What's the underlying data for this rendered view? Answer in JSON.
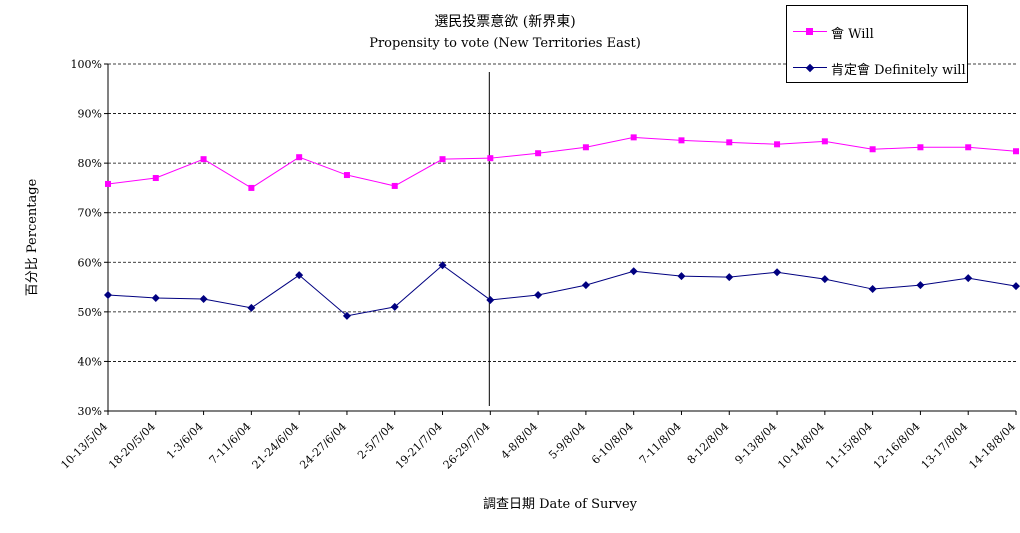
{
  "chart_data": {
    "type": "line",
    "title": "選民投票意欲 (新界東)",
    "subtitle": "Propensity to vote (New Territories East)",
    "xlabel": "調查日期 Date of Survey",
    "ylabel": "百分比 Percentage",
    "ylim": [
      30,
      100
    ],
    "yticks": [
      "30%",
      "40%",
      "50%",
      "60%",
      "70%",
      "80%",
      "90%",
      "100%"
    ],
    "grid": true,
    "legend_position": "top-right",
    "categories": [
      "10-13/5/04",
      "18-20/5/04",
      "1-3/6/04",
      "7-11/6/04",
      "21-24/6/04",
      "24-27/6/04",
      "2-5/7/04",
      "19-21/7/04",
      "26-29/7/04",
      "4-8/8/04",
      "5-9/8/04",
      "6-10/8/04",
      "7-11/8/04",
      "8-12/8/04",
      "9-13/8/04",
      "10-14/8/04",
      "11-15/8/04",
      "12-16/8/04",
      "13-17/8/04",
      "14-18/8/04"
    ],
    "vertical_marker_after_category": "26-29/7/04",
    "series": [
      {
        "name": "會 Will",
        "color": "#ff00ff",
        "marker": "square",
        "values": [
          75.8,
          77.0,
          80.8,
          75.0,
          81.2,
          77.6,
          75.4,
          80.8,
          81.0,
          82.0,
          83.2,
          85.2,
          84.6,
          84.2,
          83.8,
          84.4,
          82.8,
          83.2,
          83.2,
          82.4
        ]
      },
      {
        "name": "肯定會 Definitely will",
        "color": "#000080",
        "marker": "diamond",
        "values": [
          53.4,
          52.8,
          52.6,
          50.8,
          57.4,
          49.2,
          51.0,
          59.4,
          52.4,
          53.4,
          55.4,
          58.2,
          57.2,
          57.0,
          58.0,
          56.6,
          54.6,
          55.4,
          56.8,
          55.2
        ]
      }
    ]
  }
}
